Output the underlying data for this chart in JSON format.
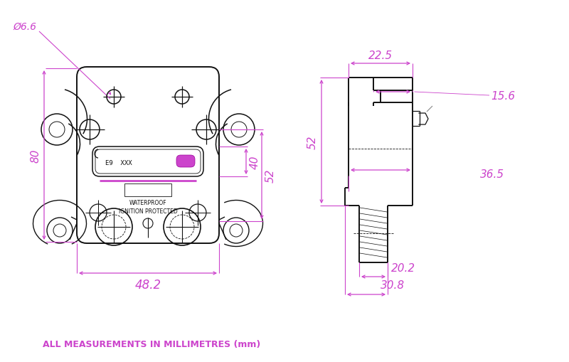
{
  "bg_color": "#ffffff",
  "line_color": "#111111",
  "dim_color": "#cc44cc",
  "footnote": "ALL MEASUREMENTS IN MILLIMETRES (mm)",
  "dim_hole": "Ø6.6",
  "dim_80": "80",
  "dim_40": "40",
  "dim_52": "52",
  "dim_482": "48.2",
  "dim_225": "22.5",
  "dim_156": "15.6",
  "dim_365": "36.5",
  "dim_202": "20.2",
  "dim_308": "30.8",
  "label_e9": "E9  XXX",
  "label_wp": "WATERPROOF",
  "label_ip": "IGNITION PROTECTED"
}
